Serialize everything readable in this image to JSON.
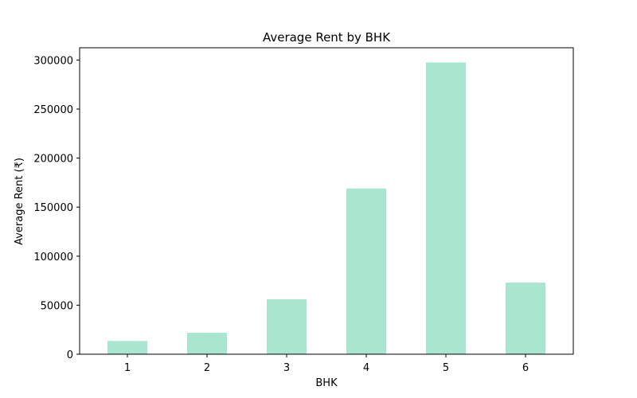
{
  "chart_data": {
    "type": "bar",
    "title": "Average Rent by BHK",
    "xlabel": "BHK",
    "ylabel": "Average Rent (₹)",
    "categories": [
      "1",
      "2",
      "3",
      "4",
      "5",
      "6"
    ],
    "values": [
      13500,
      21900,
      56000,
      169000,
      297500,
      73000
    ],
    "ylim": [
      0,
      312500
    ],
    "yticks": [
      0,
      50000,
      100000,
      150000,
      200000,
      250000,
      300000
    ],
    "ytick_labels": [
      "0",
      "50000",
      "100000",
      "150000",
      "200000",
      "250000",
      "300000"
    ],
    "bar_color": "#a8e6cf",
    "grid": false,
    "legend": "none"
  }
}
